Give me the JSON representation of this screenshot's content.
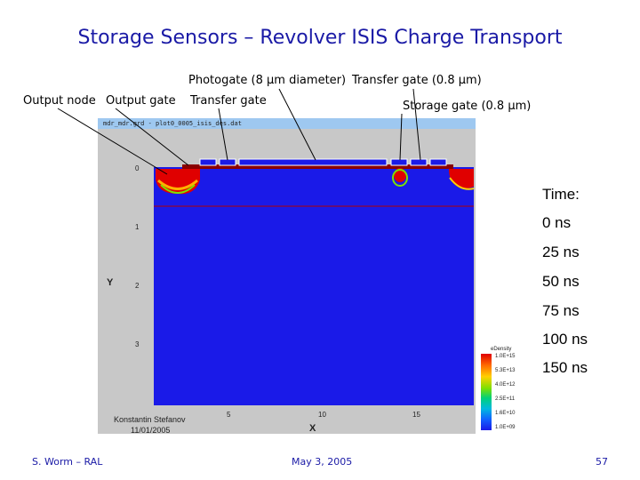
{
  "title": "Storage Sensors – Revolver ISIS Charge Transport",
  "labels": {
    "photogate": "Photogate (8 µm diameter)",
    "transfer_gate_top": "Transfer gate (0.8 µm)",
    "output_node": "Output node",
    "output_gate": "Output gate",
    "transfer_gate": "Transfer gate",
    "storage_gate": "Storage gate (0.8 µm)"
  },
  "simulation": {
    "window_title": "mdr_mdr.grd - plot0_0005_isis_des.dat",
    "y_axis_label": "Y",
    "x_axis_label": "X",
    "y_ticks": [
      "0",
      "1",
      "2",
      "3"
    ],
    "x_ticks": [
      "5",
      "10",
      "15"
    ],
    "author": "Konstantin Stefanov",
    "date": "11/01/2005",
    "legend_title": "eDensity",
    "legend_values": [
      "1.0E+15",
      "5.3E+13",
      "4.0E+12",
      "2.5E+11",
      "1.6E+10",
      "1.0E+09"
    ],
    "colors": {
      "substrate": "#1a1ae8",
      "charge": "#e00000",
      "gate": "#c00000"
    }
  },
  "time": {
    "label": "Time:",
    "values": [
      "0 ns",
      "25 ns",
      "50 ns",
      "75 ns",
      "100 ns",
      "150 ns"
    ]
  },
  "footer": {
    "author": "S. Worm – RAL",
    "date": "May 3, 2005",
    "page": "57"
  }
}
